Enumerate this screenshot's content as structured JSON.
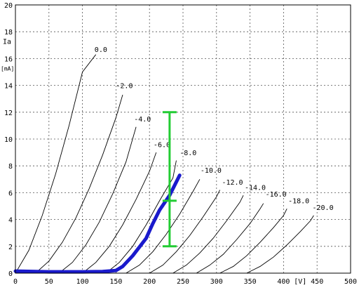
{
  "chart_data": {
    "type": "line",
    "title": "",
    "xlabel": "[V]",
    "ylabel_top": "Ia",
    "ylabel_unit": "[mA]",
    "xlim": [
      0,
      500
    ],
    "ylim": [
      0,
      20
    ],
    "grid": true,
    "x_ticks": [
      "0",
      "50",
      "100",
      "150",
      "200",
      "250",
      "300",
      "350",
      "400",
      "450",
      "500"
    ],
    "x_tick_values": [
      0,
      50,
      100,
      150,
      200,
      250,
      300,
      350,
      400,
      450,
      500
    ],
    "y_ticks": [
      "0",
      "2",
      "4",
      "6",
      "8",
      "10",
      "12",
      "14",
      "16",
      "18",
      "20"
    ],
    "y_tick_values": [
      0,
      2,
      4,
      6,
      8,
      10,
      12,
      14,
      16,
      18,
      20
    ],
    "colors": {
      "curves": "#000000",
      "load_line": "#1a1acc",
      "range_marker": "#22cc33",
      "grid": "#555555"
    },
    "series": [
      {
        "name": "0.0",
        "x": [
          0,
          20,
          40,
          60,
          80,
          100,
          120
        ],
        "y": [
          0,
          1.7,
          4.3,
          7.4,
          11.0,
          15.0,
          16.3
        ]
      },
      {
        "name": "-2.0",
        "x": [
          30,
          50,
          70,
          90,
          110,
          130,
          150,
          160
        ],
        "y": [
          0,
          0.9,
          2.3,
          4.1,
          6.3,
          8.8,
          11.6,
          13.3
        ]
      },
      {
        "name": "-4.0",
        "x": [
          65,
          85,
          105,
          125,
          145,
          165,
          180
        ],
        "y": [
          0,
          0.8,
          2.1,
          3.8,
          5.9,
          8.3,
          10.9
        ]
      },
      {
        "name": "-6.0",
        "x": [
          100,
          120,
          140,
          160,
          180,
          200,
          210
        ],
        "y": [
          0,
          0.8,
          2.0,
          3.6,
          5.5,
          7.6,
          9.0
        ]
      },
      {
        "name": "-8.0",
        "x": [
          135,
          155,
          175,
          195,
          215,
          235,
          240
        ],
        "y": [
          0,
          0.8,
          2.0,
          3.6,
          5.4,
          7.1,
          8.4
        ]
      },
      {
        "name": "-10.0",
        "x": [
          165,
          185,
          205,
          225,
          245,
          265,
          275
        ],
        "y": [
          0,
          0.6,
          1.6,
          2.9,
          4.4,
          6.1,
          7.0
        ]
      },
      {
        "name": "-12.0",
        "x": [
          200,
          220,
          240,
          260,
          280,
          300,
          305
        ],
        "y": [
          0,
          0.6,
          1.6,
          2.8,
          4.2,
          5.7,
          6.2
        ]
      },
      {
        "name": "-14.0",
        "x": [
          235,
          255,
          275,
          295,
          315,
          335,
          340
        ],
        "y": [
          0,
          0.6,
          1.5,
          2.6,
          3.9,
          5.3,
          5.8
        ]
      },
      {
        "name": "-16.0",
        "x": [
          270,
          290,
          310,
          330,
          350,
          365,
          370
        ],
        "y": [
          0,
          0.6,
          1.4,
          2.5,
          3.7,
          4.8,
          5.2
        ]
      },
      {
        "name": "-18.0",
        "x": [
          305,
          325,
          345,
          365,
          385,
          400,
          405
        ],
        "y": [
          0,
          0.5,
          1.3,
          2.3,
          3.4,
          4.3,
          4.8
        ]
      },
      {
        "name": "-20.0",
        "x": [
          345,
          365,
          385,
          405,
          425,
          440,
          445
        ],
        "y": [
          0,
          0.5,
          1.2,
          2.1,
          3.1,
          3.9,
          4.3
        ]
      }
    ],
    "curve_labels": [
      {
        "text": "0.0",
        "x": 118,
        "y": 16.5
      },
      {
        "text": "-2.0",
        "x": 150,
        "y": 13.8
      },
      {
        "text": "-4.0",
        "x": 177,
        "y": 11.3
      },
      {
        "text": "-6.0",
        "x": 206,
        "y": 9.4
      },
      {
        "text": "-8.0",
        "x": 245,
        "y": 8.8
      },
      {
        "text": "-10.0",
        "x": 276,
        "y": 7.5
      },
      {
        "text": "-12.0",
        "x": 308,
        "y": 6.6
      },
      {
        "text": "-14.0",
        "x": 342,
        "y": 6.2
      },
      {
        "text": "-16.0",
        "x": 373,
        "y": 5.7
      },
      {
        "text": "-18.0",
        "x": 407,
        "y": 5.2
      },
      {
        "text": "-20.0",
        "x": 443,
        "y": 4.7
      }
    ],
    "load_line": {
      "x": [
        0,
        50,
        100,
        130,
        150,
        160,
        175,
        195,
        205,
        215,
        230,
        245
      ],
      "y": [
        0.15,
        0.1,
        0.1,
        0.12,
        0.2,
        0.5,
        1.3,
        2.6,
        3.7,
        4.7,
        5.8,
        7.3
      ]
    },
    "range_marker": {
      "x": 230,
      "y_min": 2.0,
      "y_mid": 5.4,
      "y_max": 12.0
    }
  }
}
